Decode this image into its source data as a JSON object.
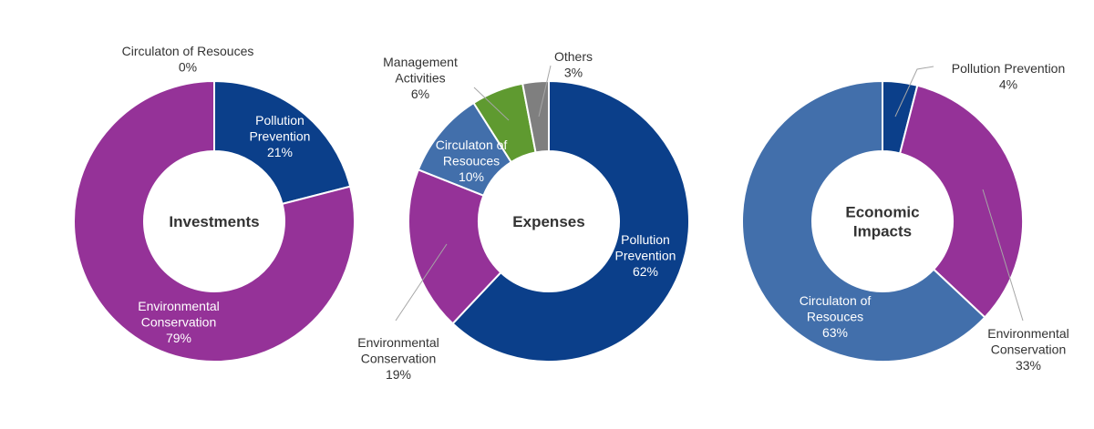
{
  "chart_data": [
    {
      "type": "pie",
      "title": "Investments",
      "title_lines": [
        "Investments"
      ],
      "slices": [
        {
          "label_lines": [
            "Pollution",
            "Prevention"
          ],
          "value_label": "21%",
          "value": 21,
          "color": "#0b3f8a",
          "label_color": "#ffffff"
        },
        {
          "label_lines": [
            "Environmental",
            "Conservation"
          ],
          "value_label": "79%",
          "value": 79,
          "color": "#953298",
          "label_color": "#ffffff"
        },
        {
          "label_lines": [
            "Circulaton of Resouces"
          ],
          "value_label": "0%",
          "value": 0,
          "color": "#426fab",
          "label_color": "#333333"
        }
      ]
    },
    {
      "type": "pie",
      "title": "Expenses",
      "title_lines": [
        "Expenses"
      ],
      "slices": [
        {
          "label_lines": [
            "Pollution",
            "Prevention"
          ],
          "value_label": "62%",
          "value": 62,
          "color": "#0b3f8a",
          "label_color": "#ffffff"
        },
        {
          "label_lines": [
            "Environmental",
            "Conservation"
          ],
          "value_label": "19%",
          "value": 19,
          "color": "#953298",
          "label_color": "#333333"
        },
        {
          "label_lines": [
            "Circulaton of",
            "Resouces"
          ],
          "value_label": "10%",
          "value": 10,
          "color": "#426fab",
          "label_color": "#ffffff"
        },
        {
          "label_lines": [
            "Management",
            "Activities"
          ],
          "value_label": "6%",
          "value": 6,
          "color": "#5f9a30",
          "label_color": "#333333"
        },
        {
          "label_lines": [
            "Others"
          ],
          "value_label": "3%",
          "value": 3,
          "color": "#7f7f7f",
          "label_color": "#333333"
        }
      ]
    },
    {
      "type": "pie",
      "title": "Economic Impacts",
      "title_lines": [
        "Economic",
        "Impacts"
      ],
      "slices": [
        {
          "label_lines": [
            "Pollution Prevention"
          ],
          "value_label": "4%",
          "value": 4,
          "color": "#0b3f8a",
          "label_color": "#333333"
        },
        {
          "label_lines": [
            "Environmental",
            "Conservation"
          ],
          "value_label": "33%",
          "value": 33,
          "color": "#953298",
          "label_color": "#333333"
        },
        {
          "label_lines": [
            "Circulaton of",
            "Resouces"
          ],
          "value_label": "63%",
          "value": 63,
          "color": "#426fab",
          "label_color": "#ffffff"
        }
      ]
    }
  ]
}
